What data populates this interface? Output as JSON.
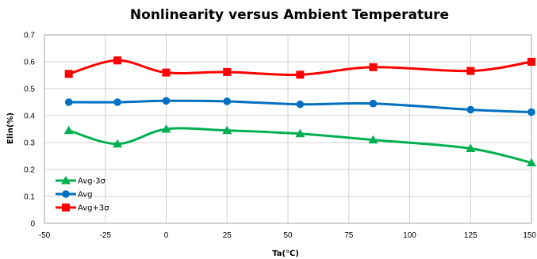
{
  "chart_data": {
    "type": "line",
    "title": "Nonlinearity versus Ambient Temperature",
    "xlabel": "Ta(℃)",
    "ylabel": "Elin(%)",
    "xlim": [
      -50,
      150
    ],
    "ylim": [
      0,
      0.7
    ],
    "xticks": [
      -50,
      -25,
      0,
      25,
      50,
      75,
      100,
      125,
      150
    ],
    "yticks": [
      0,
      0.1,
      0.2,
      0.3,
      0.4,
      0.5,
      0.6,
      0.7
    ],
    "grid": true,
    "legend_position": "bottom-left",
    "x": [
      -40,
      -20,
      0,
      25,
      55,
      85,
      125,
      150
    ],
    "series": [
      {
        "name": "Avg-3σ",
        "color": "#00B050",
        "marker": "triangle",
        "values": [
          0.345,
          0.295,
          0.35,
          0.345,
          0.333,
          0.31,
          0.278,
          0.225
        ]
      },
      {
        "name": "Avg",
        "color": "#0070C0",
        "marker": "circle",
        "values": [
          0.45,
          0.45,
          0.455,
          0.453,
          0.442,
          0.445,
          0.422,
          0.413
        ]
      },
      {
        "name": "Avg+3σ",
        "color": "#FF0000",
        "marker": "square",
        "values": [
          0.555,
          0.605,
          0.56,
          0.562,
          0.552,
          0.58,
          0.566,
          0.6
        ]
      }
    ]
  }
}
